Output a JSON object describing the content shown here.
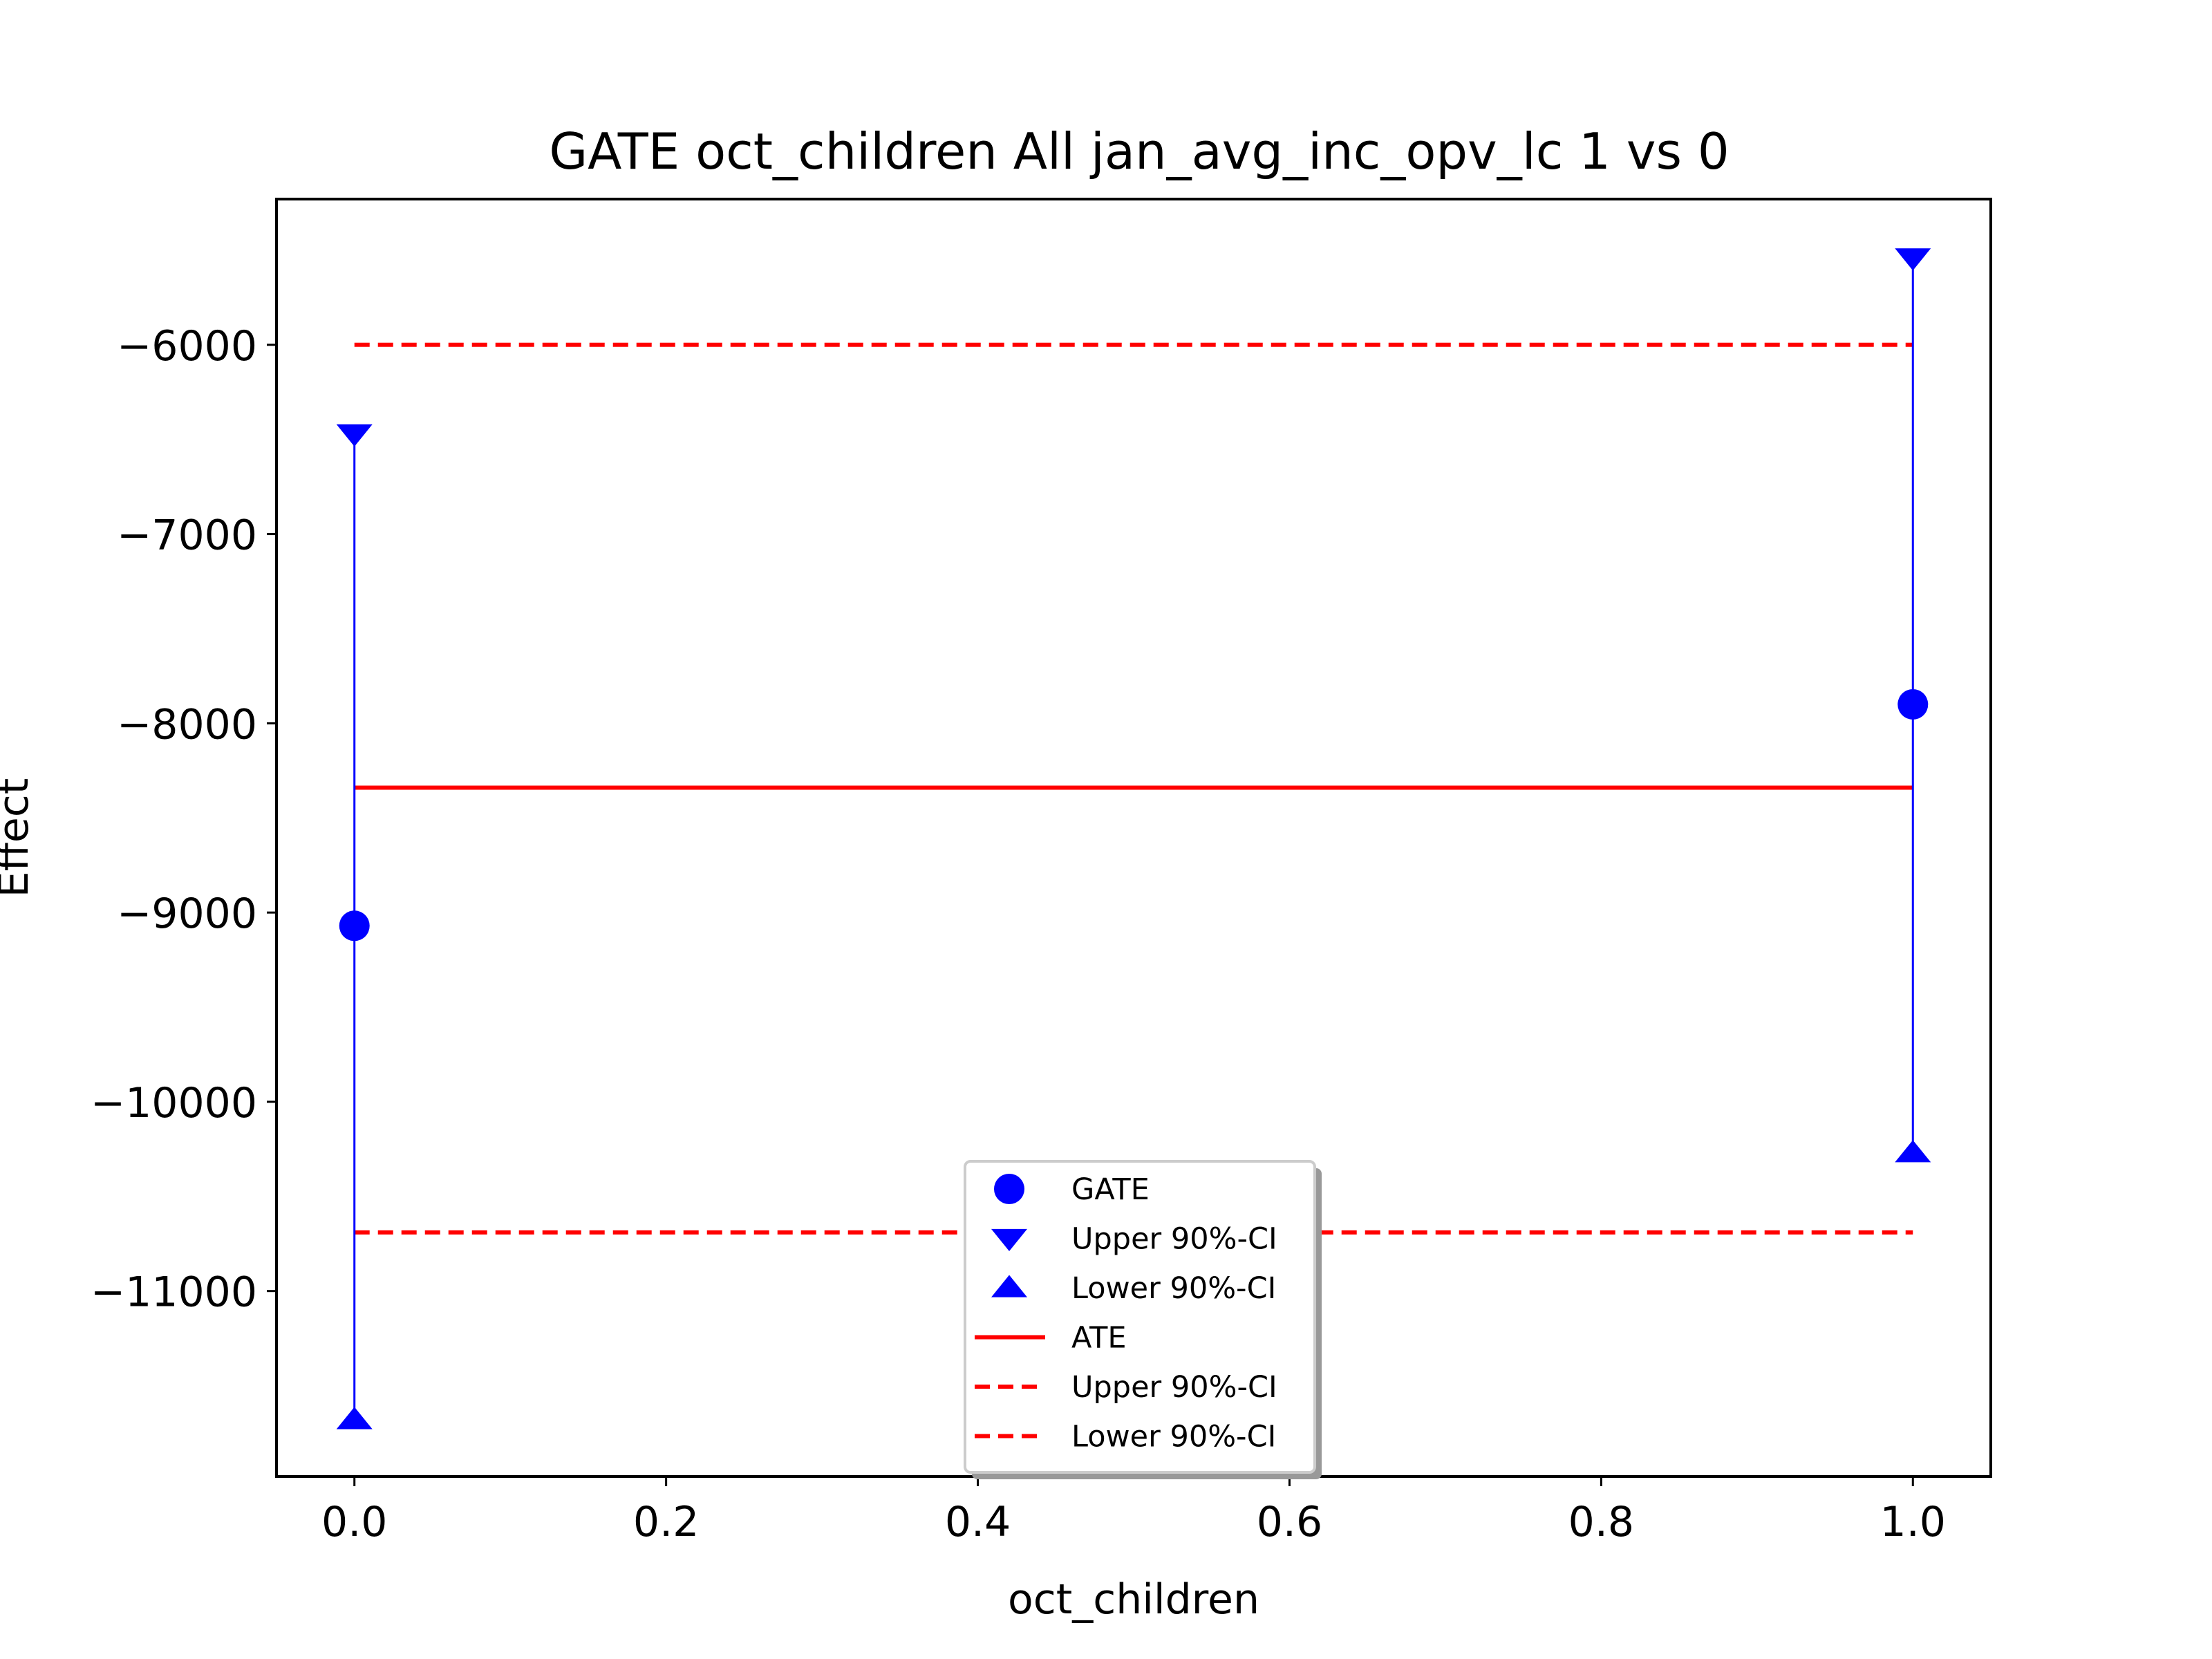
{
  "chart_data": {
    "type": "scatter",
    "title": "GATE oct_children All jan_avg_inc_opv_lc  1 vs 0",
    "xlabel": "oct_children",
    "ylabel": "Effect",
    "xlim": [
      -0.05,
      1.05
    ],
    "ylim": [
      -11980,
      -5230
    ],
    "xticks": [
      0.0,
      0.2,
      0.4,
      0.6,
      0.8,
      1.0
    ],
    "xtick_labels": [
      "0.0",
      "0.2",
      "0.4",
      "0.6",
      "0.8",
      "1.0"
    ],
    "yticks": [
      -6000,
      -7000,
      -8000,
      -9000,
      -10000,
      -11000
    ],
    "ytick_labels": [
      "−6000",
      "−7000",
      "−8000",
      "−9000",
      "−10000",
      "−11000"
    ],
    "grid": false,
    "legend_position": "bottom-center",
    "colors": {
      "gate": "#0000ff",
      "ate": "#ff0000",
      "axes": "#000000"
    },
    "gate_points": [
      {
        "x": 0.0,
        "gate": -9070,
        "upper_ci": -6470,
        "lower_ci": -11680
      },
      {
        "x": 1.0,
        "gate": -7900,
        "upper_ci": -5540,
        "lower_ci": -10270
      }
    ],
    "ate": -8340,
    "ate_upper_ci": -6000,
    "ate_lower_ci": -10690,
    "legend": [
      {
        "label": "GATE",
        "marker": "circle"
      },
      {
        "label": "Upper 90%-CI",
        "marker": "triangle-down"
      },
      {
        "label": "Lower 90%-CI",
        "marker": "triangle-up"
      },
      {
        "label": "ATE",
        "marker": "solid-line"
      },
      {
        "label": "Upper 90%-CI",
        "marker": "dashed-line"
      },
      {
        "label": "Lower 90%-CI",
        "marker": "dashed-line"
      }
    ]
  }
}
